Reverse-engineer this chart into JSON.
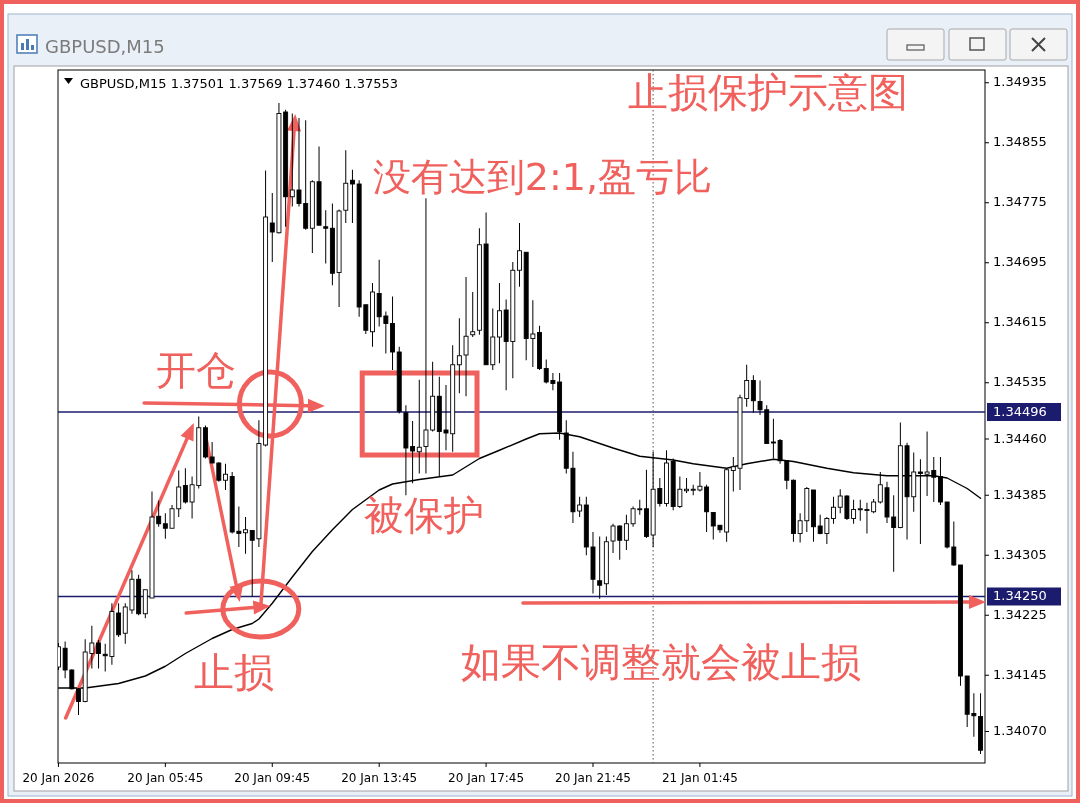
{
  "chart_data": {
    "type": "candlestick",
    "title": "止损保护示意图",
    "subtitle": "GBPUSD,M15 1.37501 1.37569 1.37460 1.37553",
    "annotations": [
      "GBPUSD,M15",
      {
        "text": "开仓",
        "x": "2026-01-20T09:30",
        "y": 1.34496
      },
      {
        "text": "止损",
        "x": "2026-01-20T09:15",
        "y": 1.3425
      },
      "没有达到2:1,盈亏比",
      "被保护",
      "如果不调整就会被止损"
    ],
    "x": [
      "2026-01-20T01:45",
      "2026-01-20T02:00",
      "2026-01-20T02:15",
      "2026-01-20T02:30",
      "2026-01-20T02:45",
      "2026-01-20T03:00",
      "2026-01-20T03:15",
      "2026-01-20T03:30",
      "2026-01-20T03:45",
      "2026-01-20T04:00",
      "2026-01-20T04:15",
      "2026-01-20T04:30",
      "2026-01-20T04:45",
      "2026-01-20T05:00",
      "2026-01-20T05:15",
      "2026-01-20T05:30",
      "2026-01-20T05:45",
      "2026-01-20T06:00",
      "2026-01-20T06:15",
      "2026-01-20T06:30",
      "2026-01-20T06:45",
      "2026-01-20T07:00",
      "2026-01-20T07:15",
      "2026-01-20T07:30",
      "2026-01-20T07:45",
      "2026-01-20T08:00",
      "2026-01-20T08:15",
      "2026-01-20T08:30",
      "2026-01-20T08:45",
      "2026-01-20T09:00",
      "2026-01-20T09:15",
      "2026-01-20T09:30",
      "2026-01-20T09:45",
      "2026-01-20T10:00",
      "2026-01-20T10:15",
      "2026-01-20T10:30",
      "2026-01-20T10:45",
      "2026-01-20T11:00",
      "2026-01-20T11:15",
      "2026-01-20T11:30",
      "2026-01-20T11:45",
      "2026-01-20T12:00",
      "2026-01-20T12:15",
      "2026-01-20T12:30",
      "2026-01-20T12:45",
      "2026-01-20T13:00",
      "2026-01-20T13:15",
      "2026-01-20T13:30",
      "2026-01-20T13:45",
      "2026-01-20T14:00",
      "2026-01-20T14:15",
      "2026-01-20T14:30",
      "2026-01-20T14:45",
      "2026-01-20T15:00",
      "2026-01-20T15:15",
      "2026-01-20T15:30",
      "2026-01-20T15:45",
      "2026-01-20T16:00",
      "2026-01-20T16:15",
      "2026-01-20T16:30",
      "2026-01-20T16:45",
      "2026-01-20T17:00",
      "2026-01-20T17:15",
      "2026-01-20T17:30",
      "2026-01-20T17:45",
      "2026-01-20T18:00",
      "2026-01-20T18:15",
      "2026-01-20T18:30",
      "2026-01-20T18:45",
      "2026-01-20T19:00",
      "2026-01-20T19:15",
      "2026-01-20T19:30",
      "2026-01-20T19:45",
      "2026-01-20T20:00",
      "2026-01-20T20:15",
      "2026-01-20T20:30",
      "2026-01-20T20:45",
      "2026-01-20T21:00",
      "2026-01-20T21:15",
      "2026-01-20T21:30",
      "2026-01-20T21:45",
      "2026-01-20T22:00",
      "2026-01-20T22:15",
      "2026-01-20T22:30",
      "2026-01-20T22:45",
      "2026-01-20T23:00",
      "2026-01-20T23:15",
      "2026-01-20T23:30",
      "2026-01-20T23:45",
      "2026-01-21T00:00",
      "2026-01-21T00:15",
      "2026-01-21T00:30",
      "2026-01-21T00:45",
      "2026-01-21T01:00",
      "2026-01-21T01:15",
      "2026-01-21T01:30",
      "2026-01-21T01:45",
      "2026-01-21T02:00",
      "2026-01-21T02:15",
      "2026-01-21T02:30",
      "2026-01-21T02:45",
      "2026-01-21T03:00",
      "2026-01-21T03:15",
      "2026-01-21T03:30",
      "2026-01-21T03:45",
      "2026-01-21T04:00",
      "2026-01-21T04:15",
      "2026-01-21T04:30",
      "2026-01-21T04:45",
      "2026-01-21T05:00",
      "2026-01-21T05:15",
      "2026-01-21T05:30",
      "2026-01-21T05:45",
      "2026-01-21T06:00",
      "2026-01-21T06:15",
      "2026-01-21T06:30",
      "2026-01-21T06:45",
      "2026-01-21T07:00",
      "2026-01-21T07:15",
      "2026-01-21T07:30",
      "2026-01-21T07:45",
      "2026-01-21T08:00",
      "2026-01-21T08:15",
      "2026-01-21T08:30",
      "2026-01-21T08:45",
      "2026-01-21T09:00",
      "2026-01-21T09:15",
      "2026-01-21T09:30",
      "2026-01-21T09:45",
      "2026-01-21T10:00",
      "2026-01-21T10:15",
      "2026-01-21T10:30",
      "2026-01-21T10:45",
      "2026-01-21T11:00",
      "2026-01-21T11:15",
      "2026-01-21T11:30",
      "2026-01-21T11:45",
      "2026-01-21T12:00",
      "2026-01-21T12:15"
    ],
    "ohlc": [
      [
        1.34156,
        1.34188,
        1.34152,
        1.34183
      ],
      [
        1.34181,
        1.3419,
        1.34141,
        1.34152
      ],
      [
        1.34152,
        1.34153,
        1.34126,
        1.34127
      ],
      [
        1.34127,
        1.34128,
        1.34092,
        1.3411
      ],
      [
        1.3411,
        1.34193,
        1.34109,
        1.34176
      ],
      [
        1.34174,
        1.34211,
        1.34154,
        1.34188
      ],
      [
        1.34188,
        1.34192,
        1.34154,
        1.34174
      ],
      [
        1.34173,
        1.34187,
        1.3415,
        1.34171
      ],
      [
        1.3417,
        1.34241,
        1.34159,
        1.3423
      ],
      [
        1.34228,
        1.34241,
        1.34196,
        1.34199
      ],
      [
        1.34201,
        1.34241,
        1.34187,
        1.34236
      ],
      [
        1.34232,
        1.34285,
        1.34227,
        1.34273
      ],
      [
        1.34273,
        1.34279,
        1.34225,
        1.34227
      ],
      [
        1.34227,
        1.34259,
        1.34221,
        1.34259
      ],
      [
        1.34248,
        1.3439,
        1.34248,
        1.34356
      ],
      [
        1.34357,
        1.34378,
        1.34343,
        1.34347
      ],
      [
        1.34347,
        1.34361,
        1.34327,
        1.34341
      ],
      [
        1.34341,
        1.34372,
        1.34341,
        1.34367
      ],
      [
        1.34367,
        1.34418,
        1.34356,
        1.34396
      ],
      [
        1.34398,
        1.34421,
        1.34374,
        1.34376
      ],
      [
        1.34376,
        1.3441,
        1.34354,
        1.34399
      ],
      [
        1.34398,
        1.3449,
        1.34394,
        1.34475
      ],
      [
        1.34475,
        1.34478,
        1.34434,
        1.34436
      ],
      [
        1.34436,
        1.34456,
        1.34428,
        1.34428
      ],
      [
        1.34428,
        1.34429,
        1.34403,
        1.34405
      ],
      [
        1.34405,
        1.34427,
        1.34392,
        1.34413
      ],
      [
        1.3441,
        1.34416,
        1.34334,
        1.34336
      ],
      [
        1.34337,
        1.3437,
        1.34316,
        1.34334
      ],
      [
        1.34335,
        1.34356,
        1.34307,
        1.34339
      ],
      [
        1.34338,
        1.34338,
        1.3425,
        1.34325
      ],
      [
        1.34327,
        1.34485,
        1.34316,
        1.34454
      ],
      [
        1.34452,
        1.34818,
        1.3445,
        1.34756
      ],
      [
        1.34748,
        1.34788,
        1.34696,
        1.34736
      ],
      [
        1.34735,
        1.34908,
        1.34734,
        1.34894
      ],
      [
        1.34896,
        1.34899,
        1.34743,
        1.34783
      ],
      [
        1.34783,
        1.34894,
        1.3477,
        1.34792
      ],
      [
        1.34792,
        1.34888,
        1.3477,
        1.34774
      ],
      [
        1.34774,
        1.34885,
        1.34739,
        1.34741
      ],
      [
        1.34741,
        1.34805,
        1.34708,
        1.34803
      ],
      [
        1.34803,
        1.3485,
        1.34745,
        1.34745
      ],
      [
        1.34743,
        1.34765,
        1.34694,
        1.34741
      ],
      [
        1.34741,
        1.34774,
        1.34665,
        1.34681
      ],
      [
        1.34682,
        1.34766,
        1.34636,
        1.34764
      ],
      [
        1.34765,
        1.34845,
        1.34748,
        1.34801
      ],
      [
        1.34805,
        1.34819,
        1.34748,
        1.348
      ],
      [
        1.348,
        1.34805,
        1.34623,
        1.34636
      ],
      [
        1.34639,
        1.34639,
        1.346,
        1.34605
      ],
      [
        1.34603,
        1.34668,
        1.34583,
        1.34656
      ],
      [
        1.34654,
        1.34699,
        1.3461,
        1.34623
      ],
      [
        1.34624,
        1.3463,
        1.34574,
        1.34614
      ],
      [
        1.34614,
        1.3465,
        1.34552,
        1.34576
      ],
      [
        1.34576,
        1.34583,
        1.34494,
        1.34497
      ],
      [
        1.34495,
        1.34505,
        1.34385,
        1.34448
      ],
      [
        1.3445,
        1.34484,
        1.34401,
        1.34444
      ],
      [
        1.34443,
        1.34539,
        1.34414,
        1.34449
      ],
      [
        1.3445,
        1.34781,
        1.34414,
        1.34472
      ],
      [
        1.34472,
        1.34563,
        1.3447,
        1.34517
      ],
      [
        1.34517,
        1.34543,
        1.3441,
        1.3447
      ],
      [
        1.34472,
        1.34532,
        1.34445,
        1.34468
      ],
      [
        1.34467,
        1.34585,
        1.34443,
        1.34559
      ],
      [
        1.34559,
        1.34621,
        1.34521,
        1.34571
      ],
      [
        1.34572,
        1.34676,
        1.34517,
        1.34597
      ],
      [
        1.34599,
        1.34656,
        1.34596,
        1.34603
      ],
      [
        1.34605,
        1.34741,
        1.34599,
        1.34719
      ],
      [
        1.3472,
        1.34762,
        1.34559,
        1.34559
      ],
      [
        1.34559,
        1.34634,
        1.34552,
        1.34596
      ],
      [
        1.34596,
        1.34668,
        1.34561,
        1.34631
      ],
      [
        1.34632,
        1.34646,
        1.34525,
        1.3459
      ],
      [
        1.3459,
        1.34696,
        1.34541,
        1.34685
      ],
      [
        1.34685,
        1.34748,
        1.34663,
        1.34711
      ],
      [
        1.34709,
        1.34709,
        1.34565,
        1.34594
      ],
      [
        1.34594,
        1.34645,
        1.34556,
        1.346
      ],
      [
        1.34602,
        1.34611,
        1.34552,
        1.34554
      ],
      [
        1.34554,
        1.34566,
        1.34534,
        1.34536
      ],
      [
        1.34538,
        1.34548,
        1.34525,
        1.34534
      ],
      [
        1.34536,
        1.34548,
        1.34459,
        1.3447
      ],
      [
        1.34468,
        1.34485,
        1.34414,
        1.34421
      ],
      [
        1.34421,
        1.34443,
        1.34348,
        1.34363
      ],
      [
        1.34364,
        1.34383,
        1.34356,
        1.34372
      ],
      [
        1.34372,
        1.34383,
        1.34305,
        1.34316
      ],
      [
        1.34316,
        1.34336,
        1.34254,
        1.34273
      ],
      [
        1.34271,
        1.3433,
        1.34247,
        1.34265
      ],
      [
        1.34267,
        1.3433,
        1.34252,
        1.34323
      ],
      [
        1.34324,
        1.34347,
        1.34308,
        1.34344
      ],
      [
        1.34344,
        1.34345,
        1.34299,
        1.34325
      ],
      [
        1.34325,
        1.34359,
        1.34312,
        1.34347
      ],
      [
        1.34347,
        1.3437,
        1.34343,
        1.34367
      ],
      [
        1.34366,
        1.34379,
        1.34359,
        1.34367
      ],
      [
        1.34367,
        1.34419,
        1.34328,
        1.3433
      ],
      [
        1.34332,
        1.34443,
        1.34316,
        1.34393
      ],
      [
        1.34394,
        1.34408,
        1.3437,
        1.34374
      ],
      [
        1.34374,
        1.34445,
        1.3437,
        1.34428
      ],
      [
        1.3443,
        1.34434,
        1.34365,
        1.3437
      ],
      [
        1.3437,
        1.3441,
        1.34368,
        1.34393
      ],
      [
        1.34391,
        1.34408,
        1.34388,
        1.34393
      ],
      [
        1.34393,
        1.34399,
        1.34385,
        1.34393
      ],
      [
        1.34392,
        1.34416,
        1.3439,
        1.34397
      ],
      [
        1.34396,
        1.34399,
        1.34336,
        1.34363
      ],
      [
        1.34362,
        1.34362,
        1.34326,
        1.34344
      ],
      [
        1.34345,
        1.34345,
        1.34335,
        1.34339
      ],
      [
        1.34336,
        1.34421,
        1.34323,
        1.34419
      ],
      [
        1.34418,
        1.34436,
        1.3439,
        1.34423
      ],
      [
        1.34421,
        1.34519,
        1.34392,
        1.34515
      ],
      [
        1.34514,
        1.34559,
        1.34503,
        1.34538
      ],
      [
        1.34538,
        1.34545,
        1.34495,
        1.34511
      ],
      [
        1.3451,
        1.34538,
        1.34492,
        1.34499
      ],
      [
        1.34499,
        1.34505,
        1.34454,
        1.34454
      ],
      [
        1.34456,
        1.34487,
        1.34434,
        1.34455
      ],
      [
        1.34458,
        1.3446,
        1.34427,
        1.34431
      ],
      [
        1.34431,
        1.34431,
        1.34393,
        1.34405
      ],
      [
        1.34405,
        1.34406,
        1.34323,
        1.34334
      ],
      [
        1.34334,
        1.34361,
        1.34322,
        1.34351
      ],
      [
        1.34351,
        1.34396,
        1.34336,
        1.34394
      ],
      [
        1.34392,
        1.34392,
        1.34323,
        1.34343
      ],
      [
        1.34344,
        1.34359,
        1.34333,
        1.34334
      ],
      [
        1.34334,
        1.34356,
        1.3432,
        1.34354
      ],
      [
        1.34354,
        1.34383,
        1.34347,
        1.34369
      ],
      [
        1.34369,
        1.34393,
        1.34361,
        1.34384
      ],
      [
        1.34384,
        1.34385,
        1.34352,
        1.34354
      ],
      [
        1.34354,
        1.34379,
        1.34347,
        1.34366
      ],
      [
        1.34366,
        1.34379,
        1.34351,
        1.34367
      ],
      [
        1.34365,
        1.34375,
        1.34334,
        1.34366
      ],
      [
        1.34363,
        1.3438,
        1.34361,
        1.34376
      ],
      [
        1.34376,
        1.34416,
        1.34374,
        1.34399
      ],
      [
        1.34395,
        1.34403,
        1.34348,
        1.34356
      ],
      [
        1.34356,
        1.34385,
        1.34283,
        1.34342
      ],
      [
        1.34342,
        1.34482,
        1.34341,
        1.34451
      ],
      [
        1.34451,
        1.34455,
        1.34326,
        1.34383
      ],
      [
        1.34383,
        1.34442,
        1.34363,
        1.34416
      ],
      [
        1.34416,
        1.34433,
        1.3432,
        1.34414
      ],
      [
        1.34413,
        1.3447,
        1.34384,
        1.34416
      ],
      [
        1.34418,
        1.34436,
        1.34376,
        1.34409
      ],
      [
        1.3441,
        1.34436,
        1.34372,
        1.34376
      ],
      [
        1.34376,
        1.34376,
        1.34314,
        1.34316
      ],
      [
        1.34316,
        1.3435,
        1.34291,
        1.34292
      ],
      [
        1.34292,
        1.34292,
        1.34131,
        1.34144
      ],
      [
        1.34144,
        1.34144,
        1.34076,
        1.34093
      ],
      [
        1.34094,
        1.34121,
        1.34063,
        1.34091
      ],
      [
        1.3409,
        1.34121,
        1.3404,
        1.34045
      ]
    ],
    "series": [
      {
        "type": "line",
        "color": "#000000",
        "x": [
          "2026-01-20T01:45",
          "2026-01-20T02:45",
          "2026-01-20T04:00",
          "2026-01-20T05:00",
          "2026-01-20T05:45",
          "2026-01-20T06:30",
          "2026-01-20T07:30",
          "2026-01-20T08:15",
          "2026-01-20T09:00",
          "2026-01-20T09:15",
          "2026-01-20T09:45",
          "2026-01-20T10:30",
          "2026-01-20T11:15",
          "2026-01-20T12:00",
          "2026-01-20T12:45",
          "2026-01-20T13:15",
          "2026-01-20T13:45",
          "2026-01-20T14:15",
          "2026-01-20T15:15",
          "2026-01-20T16:30",
          "2026-01-20T17:30",
          "2026-01-20T18:15",
          "2026-01-20T19:15",
          "2026-01-20T19:45",
          "2026-01-20T20:30",
          "2026-01-20T21:15",
          "2026-01-20T22:30",
          "2026-01-20T23:30",
          "2026-01-21T00:15",
          "2026-01-21T00:45",
          "2026-01-21T01:30",
          "2026-01-21T02:45",
          "2026-01-21T03:30",
          "2026-01-21T04:30",
          "2026-01-21T05:15",
          "2026-01-21T06:30",
          "2026-01-21T07:30",
          "2026-01-21T08:45",
          "2026-01-21T10:30",
          "2026-01-21T11:00",
          "2026-01-21T11:45",
          "2026-01-21T12:15"
        ],
        "values": [
          1.34128,
          1.34128,
          1.34134,
          1.34144,
          1.34157,
          1.34174,
          1.34194,
          1.34206,
          1.34214,
          1.3422,
          1.34241,
          1.34276,
          1.3431,
          1.34339,
          1.34366,
          1.34379,
          1.34392,
          1.344,
          1.34406,
          1.34412,
          1.34434,
          1.34445,
          1.3446,
          1.34467,
          1.34468,
          1.34463,
          1.34448,
          1.34437,
          1.34434,
          1.34432,
          1.34427,
          1.34421,
          1.34427,
          1.34433,
          1.3443,
          1.34421,
          1.34415,
          1.34411,
          1.34411,
          1.34408,
          1.34394,
          1.34381
        ]
      }
    ],
    "xlim": [
      "2026-01-20T01:44",
      "2026-01-21T12:25"
    ],
    "xticks": [
      {
        "value": "2026-01-20T01:45",
        "label": "20 Jan 2026"
      },
      {
        "value": "2026-01-20T05:45",
        "label": "20 Jan 05:45"
      },
      {
        "value": "2026-01-20T09:45",
        "label": "20 Jan 09:45"
      },
      {
        "value": "2026-01-20T13:45",
        "label": "20 Jan 13:45"
      },
      {
        "value": "2026-01-20T17:45",
        "label": "20 Jan 17:45"
      },
      {
        "value": "2026-01-20T21:45",
        "label": "20 Jan 21:45"
      },
      {
        "value": "2026-01-21T01:45",
        "label": "21 Jan 01:45"
      }
    ],
    "ylim": [
      1.34028,
      1.34952
    ],
    "yticks": [
      1.34935,
      1.34855,
      1.34775,
      1.34695,
      1.34615,
      1.34535,
      {
        "value": 1.3446,
        "label": "1.34460"
      },
      1.34385,
      1.34305,
      1.34225,
      1.34145,
      {
        "value": 1.3407,
        "label": "1.34070"
      }
    ],
    "ref_lines": [
      {
        "axis": "y",
        "value": 1.34496,
        "label": "1.34496",
        "color": "#1c1c6e"
      },
      {
        "axis": "y",
        "value": 1.3425,
        "label": "1.34250",
        "color": "#1c1c6e"
      },
      {
        "axis": "x",
        "value": "2026-01-21T00:00",
        "line_style": "dotted",
        "color": "#555555"
      }
    ]
  }
}
